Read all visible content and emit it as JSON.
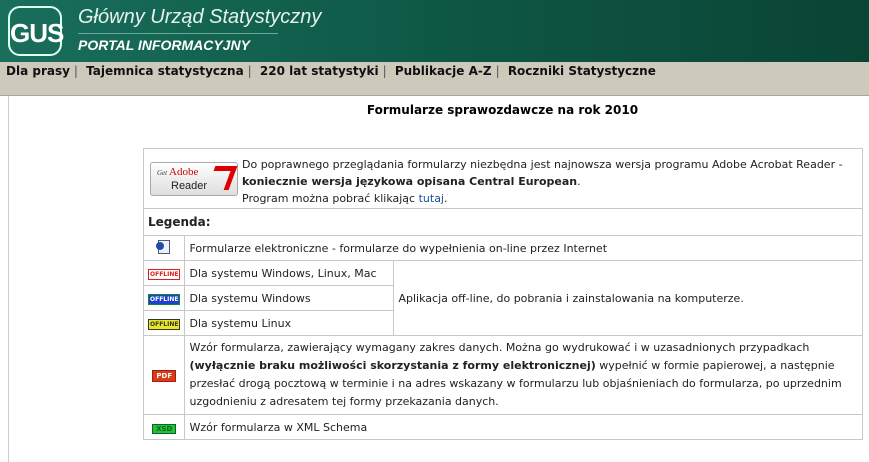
{
  "header": {
    "logo_text": "GUS",
    "title": "Główny Urząd Statystyczny",
    "subtitle": "PORTAL INFORMACYJNY"
  },
  "nav": [
    "Dla prasy",
    "Tajemnica statystyczna",
    "220 lat statystyki",
    "Publikacje A-Z",
    "Roczniki Statystyczne"
  ],
  "page_title": "Formularze sprawozdawcze na rok 2010",
  "adobe": {
    "badge_get": "Get",
    "badge_adobe": "Adobe",
    "badge_reader": "Reader",
    "line1": "Do poprawnego przeglądania formularzy niezbędna jest najnowsza wersja programu Adobe Acrobat Reader -",
    "line2_bold": "koniecznie wersja językowa opisana Central European",
    "line2_end": ".",
    "line3": "Program można pobrać klikając ",
    "link": "tutaj",
    "line3_end": "."
  },
  "legend": {
    "heading": "Legenda:",
    "electronic": "Formularze elektroniczne - formularze do wypełnienia on-line przez Internet",
    "offline_label": "OFFLINE",
    "offline": [
      {
        "text": "Dla systemu Windows, Linux, Mac",
        "color": "#d82020"
      },
      {
        "text": "Dla systemu Windows",
        "color": "#1f3fd0"
      },
      {
        "text": "Dla systemu Linux",
        "color": "#e8e820"
      }
    ],
    "offline_desc": "Aplikacja off-line, do pobrania i zainstalowania na komputerze.",
    "pdf_label": "PDF",
    "pdf_1": "Wzór formularza, zawierający wymagany zakres danych. Można go wydrukować i w uzasadnionych przypadkach",
    "pdf_bold": "(wyłącznie braku możliwości skorzystania z formy elektronicznej)",
    "pdf_2": " wypełnić w formie papierowej, a następnie przesłać drogą pocztową w terminie i na adres wskazany w formularzu lub objaśnieniach do formularza, po uprzednim uzgodnieniu z adresatem tej formy przekazania danych.",
    "xsd_label": "XSD",
    "xsd": "Wzór formularza w XML Schema"
  }
}
